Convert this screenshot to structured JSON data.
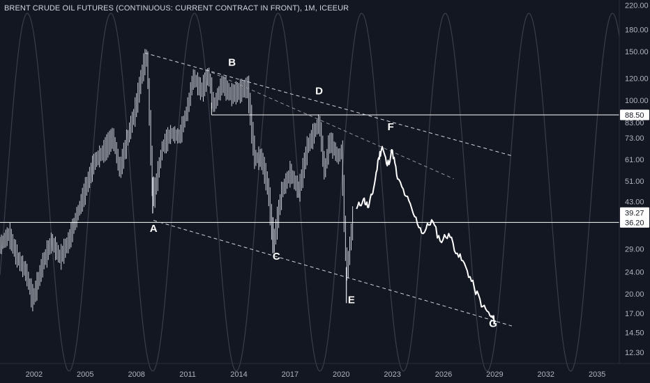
{
  "header": {
    "title": "BRENT CRUDE OIL FUTURES (CONTINUOUS: CURRENT CONTRACT IN FRONT), 1M, ICEEUR"
  },
  "colors": {
    "background": "#131722",
    "candles": "#d1d4dc",
    "projection": "#ffffff",
    "cycle": "#3a3e4a",
    "level_tag": "#ffffff",
    "axis_text": "#b2b5be"
  },
  "chart_data": {
    "type": "line",
    "title": "BRENT CRUDE OIL FUTURES (CONTINUOUS: CURRENT CONTRACT IN FRONT), 1M, ICEEUR",
    "yscale": "log",
    "ylim": [
      11.2,
      230
    ],
    "xlim": [
      2000.0,
      2036.3
    ],
    "x_ticks": [
      "2002",
      "2005",
      "2008",
      "2011",
      "2014",
      "2017",
      "2020",
      "2023",
      "2026",
      "2029",
      "2032",
      "2035"
    ],
    "y_ticks": [
      "220.00",
      "180.00",
      "150.00",
      "120.00",
      "100.00",
      "83.00",
      "73.00",
      "61.00",
      "51.00",
      "43.00",
      "36.20",
      "29.00",
      "24.00",
      "20.00",
      "17.00",
      "14.50",
      "12.30"
    ],
    "grid": false,
    "legend": "none",
    "price_history": [
      {
        "x": 2000.0,
        "y": 30
      },
      {
        "x": 2000.5,
        "y": 33
      },
      {
        "x": 2001.0,
        "y": 27
      },
      {
        "x": 2001.5,
        "y": 24
      },
      {
        "x": 2001.9,
        "y": 19
      },
      {
        "x": 2002.5,
        "y": 26
      },
      {
        "x": 2003.0,
        "y": 31
      },
      {
        "x": 2003.5,
        "y": 27
      },
      {
        "x": 2004.0,
        "y": 31
      },
      {
        "x": 2004.8,
        "y": 44
      },
      {
        "x": 2005.5,
        "y": 60
      },
      {
        "x": 2006.0,
        "y": 65
      },
      {
        "x": 2006.6,
        "y": 74
      },
      {
        "x": 2007.0,
        "y": 56
      },
      {
        "x": 2007.5,
        "y": 75
      },
      {
        "x": 2007.9,
        "y": 92
      },
      {
        "x": 2008.4,
        "y": 135
      },
      {
        "x": 2008.6,
        "y": 145
      },
      {
        "x": 2008.9,
        "y": 50
      },
      {
        "x": 2009.0,
        "y": 45
      },
      {
        "x": 2009.5,
        "y": 68
      },
      {
        "x": 2010.0,
        "y": 76
      },
      {
        "x": 2010.5,
        "y": 74
      },
      {
        "x": 2011.0,
        "y": 95
      },
      {
        "x": 2011.3,
        "y": 122
      },
      {
        "x": 2011.8,
        "y": 108
      },
      {
        "x": 2012.2,
        "y": 125
      },
      {
        "x": 2012.5,
        "y": 95
      },
      {
        "x": 2013.0,
        "y": 115
      },
      {
        "x": 2013.5,
        "y": 105
      },
      {
        "x": 2014.0,
        "y": 108
      },
      {
        "x": 2014.5,
        "y": 112
      },
      {
        "x": 2014.9,
        "y": 62
      },
      {
        "x": 2015.3,
        "y": 62
      },
      {
        "x": 2015.7,
        "y": 48
      },
      {
        "x": 2016.0,
        "y": 30
      },
      {
        "x": 2016.5,
        "y": 47
      },
      {
        "x": 2017.0,
        "y": 55
      },
      {
        "x": 2017.5,
        "y": 47
      },
      {
        "x": 2018.0,
        "y": 68
      },
      {
        "x": 2018.7,
        "y": 84
      },
      {
        "x": 2019.0,
        "y": 55
      },
      {
        "x": 2019.3,
        "y": 72
      },
      {
        "x": 2019.8,
        "y": 62
      },
      {
        "x": 2020.0,
        "y": 66
      },
      {
        "x": 2020.3,
        "y": 23
      },
      {
        "x": 2020.7,
        "y": 40
      }
    ],
    "projection": [
      {
        "x": 2020.9,
        "y": 40.5
      },
      {
        "x": 2021.3,
        "y": 44
      },
      {
        "x": 2021.6,
        "y": 41
      },
      {
        "x": 2021.9,
        "y": 48
      },
      {
        "x": 2022.2,
        "y": 62
      },
      {
        "x": 2022.4,
        "y": 68
      },
      {
        "x": 2022.7,
        "y": 58
      },
      {
        "x": 2023.0,
        "y": 66
      },
      {
        "x": 2023.3,
        "y": 52
      },
      {
        "x": 2023.8,
        "y": 45
      },
      {
        "x": 2024.3,
        "y": 38
      },
      {
        "x": 2024.8,
        "y": 33
      },
      {
        "x": 2025.3,
        "y": 37
      },
      {
        "x": 2025.8,
        "y": 31
      },
      {
        "x": 2026.3,
        "y": 33
      },
      {
        "x": 2026.8,
        "y": 28
      },
      {
        "x": 2027.3,
        "y": 25
      },
      {
        "x": 2027.8,
        "y": 21
      },
      {
        "x": 2028.3,
        "y": 18
      },
      {
        "x": 2028.8,
        "y": 16.5
      },
      {
        "x": 2029.0,
        "y": 16
      }
    ],
    "horizontal_levels": [
      {
        "value": 88.5,
        "label": "88.50"
      },
      {
        "value": 39.27,
        "label": "39.27"
      },
      {
        "value": 36.2,
        "label": "36.20"
      }
    ],
    "channel_lines": [
      {
        "from": {
          "x": 2008.5,
          "y": 148
        },
        "to": {
          "x": 2030.0,
          "y": 63
        }
      },
      {
        "from": {
          "x": 2009.0,
          "y": 36.8
        },
        "to": {
          "x": 2030.0,
          "y": 15.3
        }
      },
      {
        "from": {
          "x": 2012.4,
          "y": 126
        },
        "to": {
          "x": 2026.6,
          "y": 52
        }
      }
    ],
    "wave_labels": [
      {
        "label": "A",
        "x": 2009.0,
        "y": 33.5
      },
      {
        "label": "B",
        "x": 2013.6,
        "y": 133
      },
      {
        "label": "C",
        "x": 2016.2,
        "y": 26.5
      },
      {
        "label": "D",
        "x": 2018.7,
        "y": 105
      },
      {
        "label": "E",
        "x": 2020.6,
        "y": 18.5
      },
      {
        "label": "F",
        "x": 2022.9,
        "y": 78
      },
      {
        "label": "G",
        "x": 2028.9,
        "y": 15.2
      }
    ],
    "cycle": {
      "period_years": 4.9,
      "first_peak": 2006.5
    }
  }
}
